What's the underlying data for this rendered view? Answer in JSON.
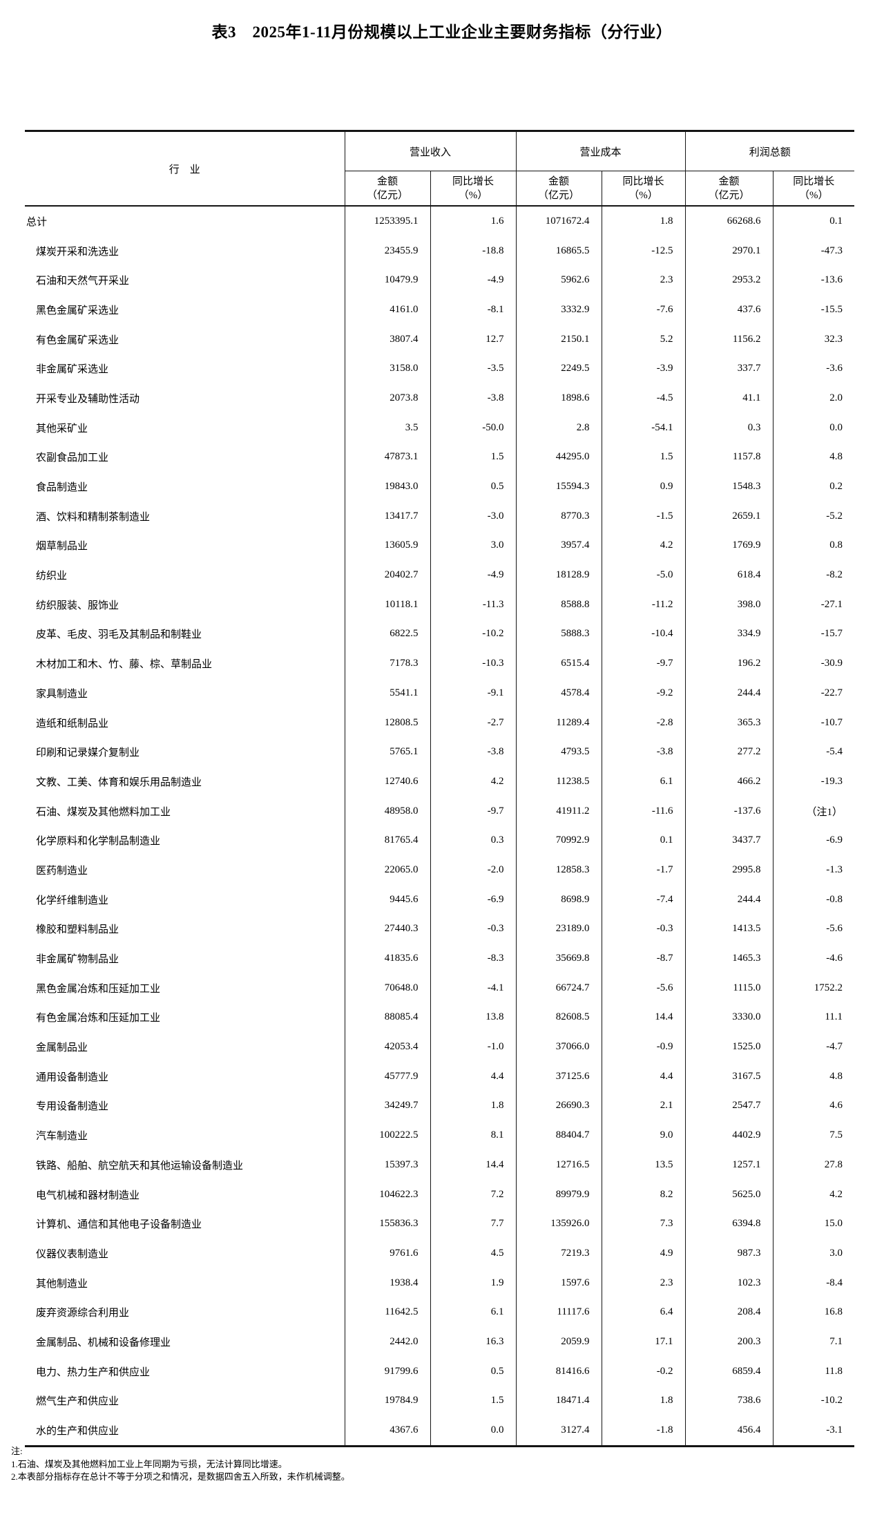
{
  "title": "表3　2025年1-11月份规模以上工业企业主要财务指标（分行业）",
  "table": {
    "industry_header": "行　业",
    "groups": [
      "营业收入",
      "营业成本",
      "利润总额"
    ],
    "sub_amount": "金额\n（亿元）",
    "sub_growth": "同比增长\n（%）",
    "rows": [
      {
        "name": "总计",
        "indent": false,
        "values": [
          "1253395.1",
          "1.6",
          "1071672.4",
          "1.8",
          "66268.6",
          "0.1"
        ]
      },
      {
        "name": "煤炭开采和洗选业",
        "indent": true,
        "values": [
          "23455.9",
          "-18.8",
          "16865.5",
          "-12.5",
          "2970.1",
          "-47.3"
        ]
      },
      {
        "name": "石油和天然气开采业",
        "indent": true,
        "values": [
          "10479.9",
          "-4.9",
          "5962.6",
          "2.3",
          "2953.2",
          "-13.6"
        ]
      },
      {
        "name": "黑色金属矿采选业",
        "indent": true,
        "values": [
          "4161.0",
          "-8.1",
          "3332.9",
          "-7.6",
          "437.6",
          "-15.5"
        ]
      },
      {
        "name": "有色金属矿采选业",
        "indent": true,
        "values": [
          "3807.4",
          "12.7",
          "2150.1",
          "5.2",
          "1156.2",
          "32.3"
        ]
      },
      {
        "name": "非金属矿采选业",
        "indent": true,
        "values": [
          "3158.0",
          "-3.5",
          "2249.5",
          "-3.9",
          "337.7",
          "-3.6"
        ]
      },
      {
        "name": "开采专业及辅助性活动",
        "indent": true,
        "values": [
          "2073.8",
          "-3.8",
          "1898.6",
          "-4.5",
          "41.1",
          "2.0"
        ]
      },
      {
        "name": "其他采矿业",
        "indent": true,
        "values": [
          "3.5",
          "-50.0",
          "2.8",
          "-54.1",
          "0.3",
          "0.0"
        ]
      },
      {
        "name": "农副食品加工业",
        "indent": true,
        "values": [
          "47873.1",
          "1.5",
          "44295.0",
          "1.5",
          "1157.8",
          "4.8"
        ]
      },
      {
        "name": "食品制造业",
        "indent": true,
        "values": [
          "19843.0",
          "0.5",
          "15594.3",
          "0.9",
          "1548.3",
          "0.2"
        ]
      },
      {
        "name": "酒、饮料和精制茶制造业",
        "indent": true,
        "values": [
          "13417.7",
          "-3.0",
          "8770.3",
          "-1.5",
          "2659.1",
          "-5.2"
        ]
      },
      {
        "name": "烟草制品业",
        "indent": true,
        "values": [
          "13605.9",
          "3.0",
          "3957.4",
          "4.2",
          "1769.9",
          "0.8"
        ]
      },
      {
        "name": "纺织业",
        "indent": true,
        "values": [
          "20402.7",
          "-4.9",
          "18128.9",
          "-5.0",
          "618.4",
          "-8.2"
        ]
      },
      {
        "name": "纺织服装、服饰业",
        "indent": true,
        "values": [
          "10118.1",
          "-11.3",
          "8588.8",
          "-11.2",
          "398.0",
          "-27.1"
        ]
      },
      {
        "name": "皮革、毛皮、羽毛及其制品和制鞋业",
        "indent": true,
        "values": [
          "6822.5",
          "-10.2",
          "5888.3",
          "-10.4",
          "334.9",
          "-15.7"
        ]
      },
      {
        "name": "木材加工和木、竹、藤、棕、草制品业",
        "indent": true,
        "values": [
          "7178.3",
          "-10.3",
          "6515.4",
          "-9.7",
          "196.2",
          "-30.9"
        ]
      },
      {
        "name": "家具制造业",
        "indent": true,
        "values": [
          "5541.1",
          "-9.1",
          "4578.4",
          "-9.2",
          "244.4",
          "-22.7"
        ]
      },
      {
        "name": "造纸和纸制品业",
        "indent": true,
        "values": [
          "12808.5",
          "-2.7",
          "11289.4",
          "-2.8",
          "365.3",
          "-10.7"
        ]
      },
      {
        "name": "印刷和记录媒介复制业",
        "indent": true,
        "values": [
          "5765.1",
          "-3.8",
          "4793.5",
          "-3.8",
          "277.2",
          "-5.4"
        ]
      },
      {
        "name": "文教、工美、体育和娱乐用品制造业",
        "indent": true,
        "values": [
          "12740.6",
          "4.2",
          "11238.5",
          "6.1",
          "466.2",
          "-19.3"
        ]
      },
      {
        "name": "石油、煤炭及其他燃料加工业",
        "indent": true,
        "values": [
          "48958.0",
          "-9.7",
          "41911.2",
          "-11.6",
          "-137.6",
          "（注1）"
        ]
      },
      {
        "name": "化学原料和化学制品制造业",
        "indent": true,
        "values": [
          "81765.4",
          "0.3",
          "70992.9",
          "0.1",
          "3437.7",
          "-6.9"
        ]
      },
      {
        "name": "医药制造业",
        "indent": true,
        "values": [
          "22065.0",
          "-2.0",
          "12858.3",
          "-1.7",
          "2995.8",
          "-1.3"
        ]
      },
      {
        "name": "化学纤维制造业",
        "indent": true,
        "values": [
          "9445.6",
          "-6.9",
          "8698.9",
          "-7.4",
          "244.4",
          "-0.8"
        ]
      },
      {
        "name": "橡胶和塑料制品业",
        "indent": true,
        "values": [
          "27440.3",
          "-0.3",
          "23189.0",
          "-0.3",
          "1413.5",
          "-5.6"
        ]
      },
      {
        "name": "非金属矿物制品业",
        "indent": true,
        "values": [
          "41835.6",
          "-8.3",
          "35669.8",
          "-8.7",
          "1465.3",
          "-4.6"
        ]
      },
      {
        "name": "黑色金属冶炼和压延加工业",
        "indent": true,
        "values": [
          "70648.0",
          "-4.1",
          "66724.7",
          "-5.6",
          "1115.0",
          "1752.2"
        ]
      },
      {
        "name": "有色金属冶炼和压延加工业",
        "indent": true,
        "values": [
          "88085.4",
          "13.8",
          "82608.5",
          "14.4",
          "3330.0",
          "11.1"
        ]
      },
      {
        "name": "金属制品业",
        "indent": true,
        "values": [
          "42053.4",
          "-1.0",
          "37066.0",
          "-0.9",
          "1525.0",
          "-4.7"
        ]
      },
      {
        "name": "通用设备制造业",
        "indent": true,
        "values": [
          "45777.9",
          "4.4",
          "37125.6",
          "4.4",
          "3167.5",
          "4.8"
        ]
      },
      {
        "name": "专用设备制造业",
        "indent": true,
        "values": [
          "34249.7",
          "1.8",
          "26690.3",
          "2.1",
          "2547.7",
          "4.6"
        ]
      },
      {
        "name": "汽车制造业",
        "indent": true,
        "values": [
          "100222.5",
          "8.1",
          "88404.7",
          "9.0",
          "4402.9",
          "7.5"
        ]
      },
      {
        "name": "铁路、船舶、航空航天和其他运输设备制造业",
        "indent": true,
        "values": [
          "15397.3",
          "14.4",
          "12716.5",
          "13.5",
          "1257.1",
          "27.8"
        ]
      },
      {
        "name": "电气机械和器材制造业",
        "indent": true,
        "values": [
          "104622.3",
          "7.2",
          "89979.9",
          "8.2",
          "5625.0",
          "4.2"
        ]
      },
      {
        "name": "计算机、通信和其他电子设备制造业",
        "indent": true,
        "values": [
          "155836.3",
          "7.7",
          "135926.0",
          "7.3",
          "6394.8",
          "15.0"
        ]
      },
      {
        "name": "仪器仪表制造业",
        "indent": true,
        "values": [
          "9761.6",
          "4.5",
          "7219.3",
          "4.9",
          "987.3",
          "3.0"
        ]
      },
      {
        "name": "其他制造业",
        "indent": true,
        "values": [
          "1938.4",
          "1.9",
          "1597.6",
          "2.3",
          "102.3",
          "-8.4"
        ]
      },
      {
        "name": "废弃资源综合利用业",
        "indent": true,
        "values": [
          "11642.5",
          "6.1",
          "11117.6",
          "6.4",
          "208.4",
          "16.8"
        ]
      },
      {
        "name": "金属制品、机械和设备修理业",
        "indent": true,
        "values": [
          "2442.0",
          "16.3",
          "2059.9",
          "17.1",
          "200.3",
          "7.1"
        ]
      },
      {
        "name": "电力、热力生产和供应业",
        "indent": true,
        "values": [
          "91799.6",
          "0.5",
          "81416.6",
          "-0.2",
          "6859.4",
          "11.8"
        ]
      },
      {
        "name": "燃气生产和供应业",
        "indent": true,
        "values": [
          "19784.9",
          "1.5",
          "18471.4",
          "1.8",
          "738.6",
          "-10.2"
        ]
      },
      {
        "name": "水的生产和供应业",
        "indent": true,
        "values": [
          "4367.6",
          "0.0",
          "3127.4",
          "-1.8",
          "456.4",
          "-3.1"
        ]
      }
    ]
  },
  "notes": {
    "label": "注:",
    "items": [
      "1.石油、煤炭及其他燃料加工业上年同期为亏损，无法计算同比增速。",
      "2.本表部分指标存在总计不等于分项之和情况，是数据四舍五入所致，未作机械调整。"
    ]
  }
}
